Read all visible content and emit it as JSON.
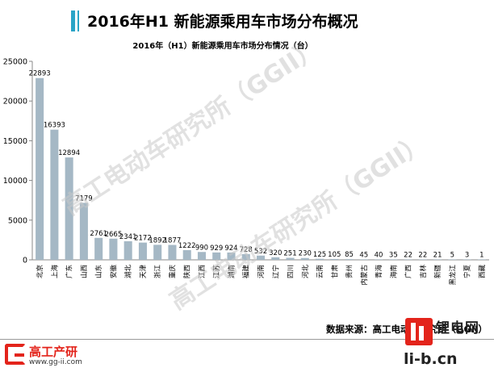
{
  "header": {
    "title": "2016年H1  新能源乘用车市场分布概况"
  },
  "watermark": "高工电动车研究所（GGII）",
  "source": "数据来源：高工电动车研究所（GGII）",
  "logo_left": {
    "name": "高工产研",
    "url": "www.gg-ii.com"
  },
  "logo_right": {
    "name": "锂电网",
    "url": "li-b.cn"
  },
  "colors": {
    "bar": "#a5b8c5",
    "accent": "#2aa4c7",
    "logo": "#e3241b"
  },
  "chart_data": {
    "type": "bar",
    "title": "2016年（H1）新能源乘用车市场分布情况（台）",
    "xlabel": "",
    "ylabel": "",
    "ylim": [
      0,
      25000
    ],
    "yticks": [
      0,
      5000,
      10000,
      15000,
      20000,
      25000
    ],
    "grid": false,
    "legend": "none",
    "categories": [
      "北京",
      "上海",
      "广东",
      "山西",
      "山东",
      "安徽",
      "湖北",
      "天津",
      "浙江",
      "重庆",
      "陕西",
      "江西",
      "江苏",
      "湖南",
      "福建",
      "河南",
      "辽宁",
      "四川",
      "河北",
      "云南",
      "甘肃",
      "贵州",
      "内蒙古",
      "青海",
      "海南",
      "广西",
      "吉林",
      "新疆",
      "黑龙江",
      "宁夏",
      "西藏"
    ],
    "values": [
      22893,
      16393,
      12894,
      7179,
      2761,
      2665,
      2341,
      2172,
      1892,
      1877,
      1222,
      990,
      929,
      924,
      728,
      532,
      320,
      251,
      230,
      125,
      105,
      85,
      45,
      40,
      35,
      22,
      22,
      21,
      5,
      3,
      1
    ]
  }
}
